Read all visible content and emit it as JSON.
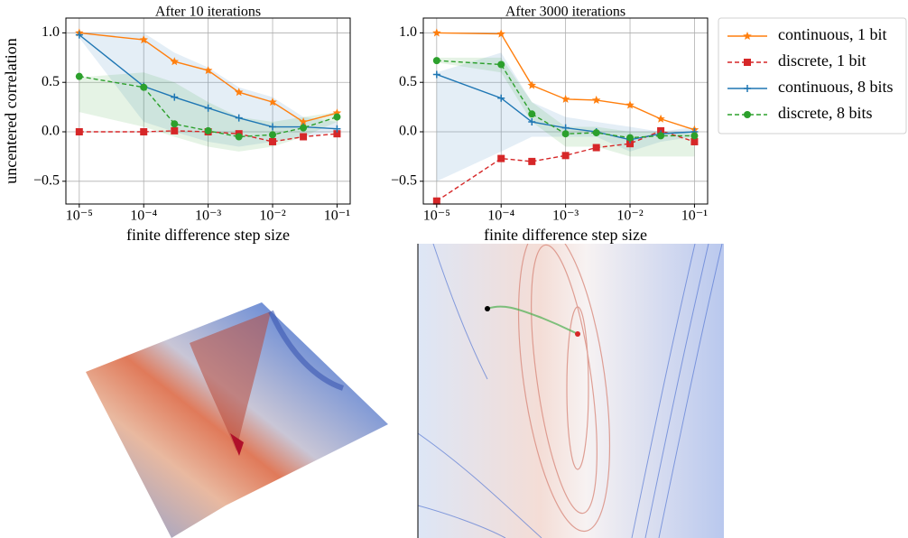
{
  "chart_data": [
    {
      "type": "line",
      "title": "After 10 iterations",
      "ylabel": "uncentered correlation",
      "xlabel": "finite difference step size",
      "xscale": "log",
      "grid": true,
      "x": [
        1e-05,
        0.0001,
        0.0003,
        0.001,
        0.003,
        0.01,
        0.03,
        0.1
      ],
      "xlim": [
        6.2e-06,
        0.16
      ],
      "xticks": [
        {
          "value": 1e-05,
          "label": "10⁻⁵"
        },
        {
          "value": 0.0001,
          "label": "10⁻⁴"
        },
        {
          "value": 0.001,
          "label": "10⁻³"
        },
        {
          "value": 0.01,
          "label": "10⁻²"
        },
        {
          "value": 0.1,
          "label": "10⁻¹"
        }
      ],
      "ylim": [
        -0.73,
        1.15
      ],
      "yticks": [
        {
          "value": -0.5,
          "label": "−0.5"
        },
        {
          "value": 0,
          "label": "0.0"
        },
        {
          "value": 0.5,
          "label": "0.5"
        },
        {
          "value": 1,
          "label": "1.0"
        }
      ],
      "series": [
        {
          "color": "#ff7f0e",
          "marker": "star",
          "linestyle": "solid",
          "values": [
            1.0,
            0.93,
            0.71,
            0.62,
            0.4,
            0.3,
            0.1,
            0.19
          ]
        },
        {
          "color": "#d62728",
          "marker": "square",
          "linestyle": "dashed",
          "values": [
            0.0,
            0.0,
            0.01,
            0.0,
            -0.02,
            -0.1,
            -0.05,
            -0.02
          ]
        },
        {
          "color": "#1f77b4",
          "marker": "plus",
          "linestyle": "solid",
          "values": [
            0.98,
            0.46,
            0.35,
            0.24,
            0.14,
            0.05,
            0.05,
            0.03
          ],
          "upper": [
            1.0,
            1.0,
            0.8,
            0.65,
            0.45,
            0.35,
            0.15,
            0.1
          ],
          "lower": [
            0.95,
            0.1,
            0.0,
            -0.1,
            -0.15,
            -0.1,
            -0.05,
            0.0
          ]
        },
        {
          "color": "#2ca02c",
          "marker": "circle",
          "linestyle": "dashed",
          "values": [
            0.56,
            0.45,
            0.08,
            0.01,
            -0.05,
            -0.03,
            0.04,
            0.15
          ],
          "upper": [
            0.55,
            0.6,
            0.5,
            0.3,
            0.15,
            0.1,
            0.15,
            0.2
          ],
          "lower": [
            0.2,
            0.05,
            -0.05,
            -0.15,
            -0.2,
            -0.15,
            -0.05,
            0.1
          ]
        }
      ]
    },
    {
      "type": "line",
      "title": "After 3000 iterations",
      "xlabel": "finite difference step size",
      "xscale": "log",
      "grid": true,
      "legend": "outside right",
      "x": [
        1e-05,
        0.0001,
        0.0003,
        0.001,
        0.003,
        0.01,
        0.03,
        0.1
      ],
      "xlim": [
        6.2e-06,
        0.16
      ],
      "xticks": [
        {
          "value": 1e-05,
          "label": "10⁻⁵"
        },
        {
          "value": 0.0001,
          "label": "10⁻⁴"
        },
        {
          "value": 0.001,
          "label": "10⁻³"
        },
        {
          "value": 0.01,
          "label": "10⁻²"
        },
        {
          "value": 0.1,
          "label": "10⁻¹"
        }
      ],
      "ylim": [
        -0.73,
        1.15
      ],
      "yticks": [
        {
          "value": -0.5,
          "label": "−0.5"
        },
        {
          "value": 0,
          "label": "0.0"
        },
        {
          "value": 0.5,
          "label": "0.5"
        },
        {
          "value": 1,
          "label": "1.0"
        }
      ],
      "series": [
        {
          "name": "continuous, 1 bit",
          "color": "#ff7f0e",
          "marker": "star",
          "linestyle": "solid",
          "values": [
            1.0,
            0.99,
            0.47,
            0.33,
            0.32,
            0.27,
            0.13,
            0.02
          ]
        },
        {
          "name": "discrete, 1 bit",
          "color": "#d62728",
          "marker": "square",
          "linestyle": "dashed",
          "values": [
            -0.7,
            -0.27,
            -0.3,
            -0.24,
            -0.16,
            -0.12,
            0.01,
            -0.1
          ]
        },
        {
          "name": "continuous, 8 bits",
          "color": "#1f77b4",
          "marker": "plus",
          "linestyle": "solid",
          "values": [
            0.58,
            0.34,
            0.1,
            0.04,
            0.0,
            -0.08,
            -0.02,
            0.0
          ],
          "upper": [
            0.6,
            0.8,
            0.3,
            0.15,
            0.1,
            0.05,
            0.0,
            0.05
          ],
          "lower": [
            -0.5,
            -0.2,
            -0.05,
            -0.05,
            -0.05,
            -0.2,
            -0.1,
            -0.05
          ]
        },
        {
          "name": "discrete, 8 bits",
          "color": "#2ca02c",
          "marker": "circle",
          "linestyle": "dashed",
          "values": [
            0.72,
            0.68,
            0.18,
            -0.02,
            -0.01,
            -0.06,
            -0.04,
            -0.04
          ],
          "upper": [
            0.75,
            0.75,
            0.3,
            0.05,
            0.05,
            0.0,
            0.0,
            0.0
          ],
          "lower": [
            0.7,
            0.6,
            0.1,
            -0.15,
            -0.15,
            -0.25,
            -0.25,
            -0.25
          ]
        }
      ]
    }
  ]
}
